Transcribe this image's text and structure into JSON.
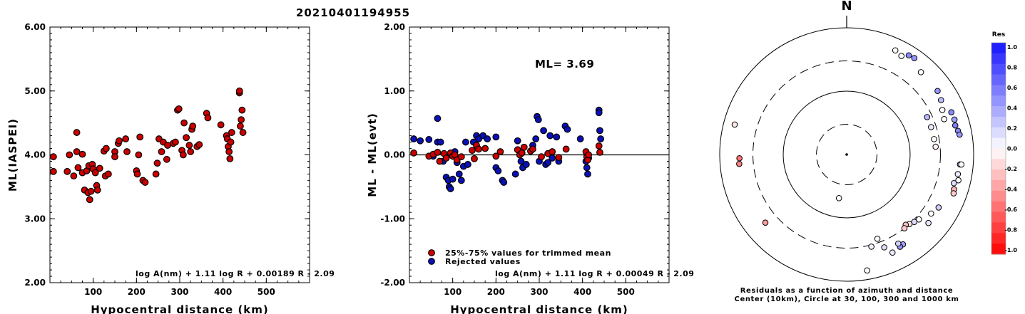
{
  "event_id": "20210401194955",
  "colors": {
    "red": "#cc0000",
    "blue": "#0a10b8",
    "black": "#000000"
  },
  "chart_data": [
    {
      "type": "scatter",
      "title": "",
      "xlabel": "Hypocentral distance (km)",
      "ylabel": "ML(IASPEI)",
      "xlim": [
        0,
        600
      ],
      "ylim": [
        2.0,
        6.0
      ],
      "x_ticks": [
        "100",
        "200",
        "300",
        "400",
        "500"
      ],
      "y_ticks": [
        "2.00",
        "3.00",
        "4.00",
        "5.00",
        "6.00"
      ],
      "formula": "log A(nm) + 1.11 log R + 0.00189 R - 2.09",
      "series": [
        {
          "color": "red",
          "points": [
            [
              8,
              3.97
            ],
            [
              8,
              3.74
            ],
            [
              45,
              4.0
            ],
            [
              40,
              3.74
            ],
            [
              55,
              3.67
            ],
            [
              62,
              4.35
            ],
            [
              62,
              4.05
            ],
            [
              65,
              3.8
            ],
            [
              75,
              4.01
            ],
            [
              75,
              3.72
            ],
            [
              80,
              3.45
            ],
            [
              85,
              3.75
            ],
            [
              88,
              3.41
            ],
            [
              90,
              3.83
            ],
            [
              92,
              3.3
            ],
            [
              95,
              3.43
            ],
            [
              98,
              3.85
            ],
            [
              100,
              3.78
            ],
            [
              105,
              3.72
            ],
            [
              108,
              3.52
            ],
            [
              110,
              3.45
            ],
            [
              115,
              3.79
            ],
            [
              125,
              4.06
            ],
            [
              128,
              3.67
            ],
            [
              130,
              4.1
            ],
            [
              135,
              3.7
            ],
            [
              150,
              4.05
            ],
            [
              150,
              3.97
            ],
            [
              158,
              4.18
            ],
            [
              160,
              4.22
            ],
            [
              175,
              4.25
            ],
            [
              178,
              4.05
            ],
            [
              200,
              3.75
            ],
            [
              202,
              3.7
            ],
            [
              205,
              4.0
            ],
            [
              208,
              4.28
            ],
            [
              215,
              3.6
            ],
            [
              220,
              3.57
            ],
            [
              245,
              3.7
            ],
            [
              248,
              3.87
            ],
            [
              252,
              4.25
            ],
            [
              258,
              4.05
            ],
            [
              262,
              4.2
            ],
            [
              270,
              3.93
            ],
            [
              272,
              4.15
            ],
            [
              285,
              4.18
            ],
            [
              290,
              4.2
            ],
            [
              295,
              4.7
            ],
            [
              298,
              4.72
            ],
            [
              305,
              4.07
            ],
            [
              308,
              4.0
            ],
            [
              310,
              4.5
            ],
            [
              315,
              4.27
            ],
            [
              322,
              4.15
            ],
            [
              325,
              4.05
            ],
            [
              328,
              4.4
            ],
            [
              330,
              4.45
            ],
            [
              340,
              4.13
            ],
            [
              345,
              4.16
            ],
            [
              362,
              4.65
            ],
            [
              365,
              4.58
            ],
            [
              395,
              4.47
            ],
            [
              408,
              4.3
            ],
            [
              410,
              4.25
            ],
            [
              412,
              4.13
            ],
            [
              414,
              4.05
            ],
            [
              416,
              3.94
            ],
            [
              418,
              4.2
            ],
            [
              420,
              4.35
            ],
            [
              438,
              4.97
            ],
            [
              438,
              5.0
            ],
            [
              440,
              4.45
            ],
            [
              442,
              4.55
            ],
            [
              444,
              4.7
            ],
            [
              446,
              4.35
            ]
          ]
        }
      ]
    },
    {
      "type": "scatter",
      "title": "",
      "xlabel": "Hypocentral distance (km)",
      "ylabel": "ML - ML(evt)",
      "xlim": [
        0,
        600
      ],
      "ylim": [
        -2.0,
        2.0
      ],
      "x_ticks": [
        "100",
        "200",
        "300",
        "400",
        "500"
      ],
      "y_ticks": [
        "-2.00",
        "-1.00",
        "0.00",
        "1.00",
        "2.00"
      ],
      "annotation": "ML= 3.69",
      "formula": "log A(nm) + 1.11 log R + 0.00049 R - 2.09",
      "legend": {
        "entries": [
          "25%-75% values for trimmed mean",
          "Rejected values"
        ],
        "position": "bottom-left"
      },
      "series": [
        {
          "color": "red",
          "points": [
            [
              10,
              0.03
            ],
            [
              45,
              -0.02
            ],
            [
              55,
              0.01
            ],
            [
              65,
              0.04
            ],
            [
              70,
              -0.1
            ],
            [
              80,
              0.02
            ],
            [
              85,
              -0.05
            ],
            [
              95,
              0.03
            ],
            [
              100,
              -0.02
            ],
            [
              105,
              0.0
            ],
            [
              110,
              -0.08
            ],
            [
              120,
              -0.03
            ],
            [
              145,
              0.07
            ],
            [
              150,
              -0.06
            ],
            [
              155,
              0.15
            ],
            [
              160,
              0.09
            ],
            [
              175,
              0.1
            ],
            [
              200,
              -0.02
            ],
            [
              210,
              0.05
            ],
            [
              250,
              0.08
            ],
            [
              255,
              0.0
            ],
            [
              260,
              0.03
            ],
            [
              265,
              0.12
            ],
            [
              280,
              0.06
            ],
            [
              285,
              0.09
            ],
            [
              305,
              -0.03
            ],
            [
              320,
              0.02
            ],
            [
              330,
              0.05
            ],
            [
              345,
              -0.04
            ],
            [
              362,
              0.09
            ],
            [
              408,
              0.05
            ],
            [
              410,
              -0.03
            ],
            [
              412,
              -0.08
            ],
            [
              414,
              0.0
            ],
            [
              438,
              0.14
            ],
            [
              440,
              0.04
            ]
          ]
        },
        {
          "color": "blue",
          "points": [
            [
              10,
              0.25
            ],
            [
              25,
              0.22
            ],
            [
              45,
              0.24
            ],
            [
              55,
              -0.02
            ],
            [
              65,
              0.57
            ],
            [
              65,
              0.2
            ],
            [
              72,
              0.2
            ],
            [
              78,
              -0.1
            ],
            [
              85,
              -0.35
            ],
            [
              90,
              -0.4
            ],
            [
              92,
              -0.5
            ],
            [
              95,
              -0.53
            ],
            [
              100,
              -0.38
            ],
            [
              105,
              0.05
            ],
            [
              110,
              -0.12
            ],
            [
              115,
              -0.3
            ],
            [
              120,
              -0.4
            ],
            [
              125,
              -0.18
            ],
            [
              130,
              0.2
            ],
            [
              135,
              -0.15
            ],
            [
              148,
              0.2
            ],
            [
              155,
              0.3
            ],
            [
              160,
              0.25
            ],
            [
              170,
              0.3
            ],
            [
              180,
              0.25
            ],
            [
              200,
              0.28
            ],
            [
              200,
              -0.2
            ],
            [
              205,
              -0.25
            ],
            [
              215,
              -0.4
            ],
            [
              218,
              -0.43
            ],
            [
              245,
              -0.3
            ],
            [
              250,
              0.22
            ],
            [
              258,
              -0.1
            ],
            [
              262,
              -0.2
            ],
            [
              270,
              -0.15
            ],
            [
              285,
              0.15
            ],
            [
              292,
              0.25
            ],
            [
              295,
              0.6
            ],
            [
              298,
              0.55
            ],
            [
              300,
              -0.1
            ],
            [
              310,
              0.38
            ],
            [
              315,
              -0.15
            ],
            [
              320,
              -0.12
            ],
            [
              325,
              0.3
            ],
            [
              330,
              -0.05
            ],
            [
              340,
              0.28
            ],
            [
              345,
              -0.1
            ],
            [
              360,
              0.45
            ],
            [
              365,
              0.4
            ],
            [
              395,
              0.25
            ],
            [
              408,
              -0.1
            ],
            [
              410,
              -0.2
            ],
            [
              412,
              -0.3
            ],
            [
              414,
              -0.05
            ],
            [
              438,
              0.7
            ],
            [
              438,
              0.66
            ],
            [
              440,
              0.38
            ],
            [
              442,
              0.25
            ]
          ]
        }
      ]
    },
    {
      "type": "scatter",
      "title": "N",
      "caption": "Residuals as a function of azimuth and distance",
      "caption2": "Center (10km), Circle at 30, 100, 300 and 1000 km",
      "rings_km": [
        30,
        100,
        300,
        1000
      ],
      "colorbar": {
        "title": "Res",
        "ticks": [
          "1.0",
          "0.8",
          "0.6",
          "0.4",
          "0.2",
          "0.0",
          "-0.2",
          "-0.4",
          "-0.6",
          "-0.8",
          "-1.0"
        ]
      },
      "points": [
        [
          25,
          650,
          0.0
        ],
        [
          29,
          600,
          0.0
        ],
        [
          32,
          700,
          0.5
        ],
        [
          35,
          720,
          0.45
        ],
        [
          42,
          560,
          0.0
        ],
        [
          55,
          560,
          0.45
        ],
        [
          60,
          520,
          0.3
        ],
        [
          68,
          600,
          0.5
        ],
        [
          72,
          610,
          0.4
        ],
        [
          75,
          590,
          0.55
        ],
        [
          78,
          620,
          0.5
        ],
        [
          80,
          640,
          0.45
        ],
        [
          65,
          460,
          0.0
        ],
        [
          70,
          430,
          0.0
        ],
        [
          65,
          250,
          0.3
        ],
        [
          72,
          250,
          0.1
        ],
        [
          80,
          250,
          0.0
        ],
        [
          85,
          255,
          -0.05
        ],
        [
          95,
          620,
          0.3
        ],
        [
          100,
          600,
          0.1
        ],
        [
          103,
          640,
          0.0
        ],
        [
          105,
          560,
          0.15
        ],
        [
          108,
          600,
          -0.3
        ],
        [
          110,
          620,
          -0.2
        ],
        [
          95,
          650,
          0.0
        ],
        [
          120,
          470,
          0.2
        ],
        [
          130,
          480,
          0.1
        ],
        [
          125,
          420,
          0.0
        ],
        [
          132,
          340,
          0.0
        ],
        [
          135,
          320,
          0.15
        ],
        [
          138,
          300,
          -0.1
        ],
        [
          140,
          280,
          -0.25
        ],
        [
          142,
          300,
          -0.2
        ],
        [
          148,
          470,
          0.4
        ],
        [
          150,
          480,
          0.45
        ],
        [
          150,
          420,
          0.2
        ],
        [
          155,
          510,
          0.1
        ],
        [
          158,
          380,
          0.15
        ],
        [
          160,
          260,
          0.0
        ],
        [
          165,
          320,
          0.05
        ],
        [
          170,
          720,
          0.0
        ],
        [
          190,
          50,
          0.0
        ],
        [
          230,
          470,
          -0.4
        ],
        [
          265,
          500,
          -0.5
        ],
        [
          268,
          490,
          -0.55
        ],
        [
          285,
          670,
          -0.1
        ]
      ]
    }
  ]
}
